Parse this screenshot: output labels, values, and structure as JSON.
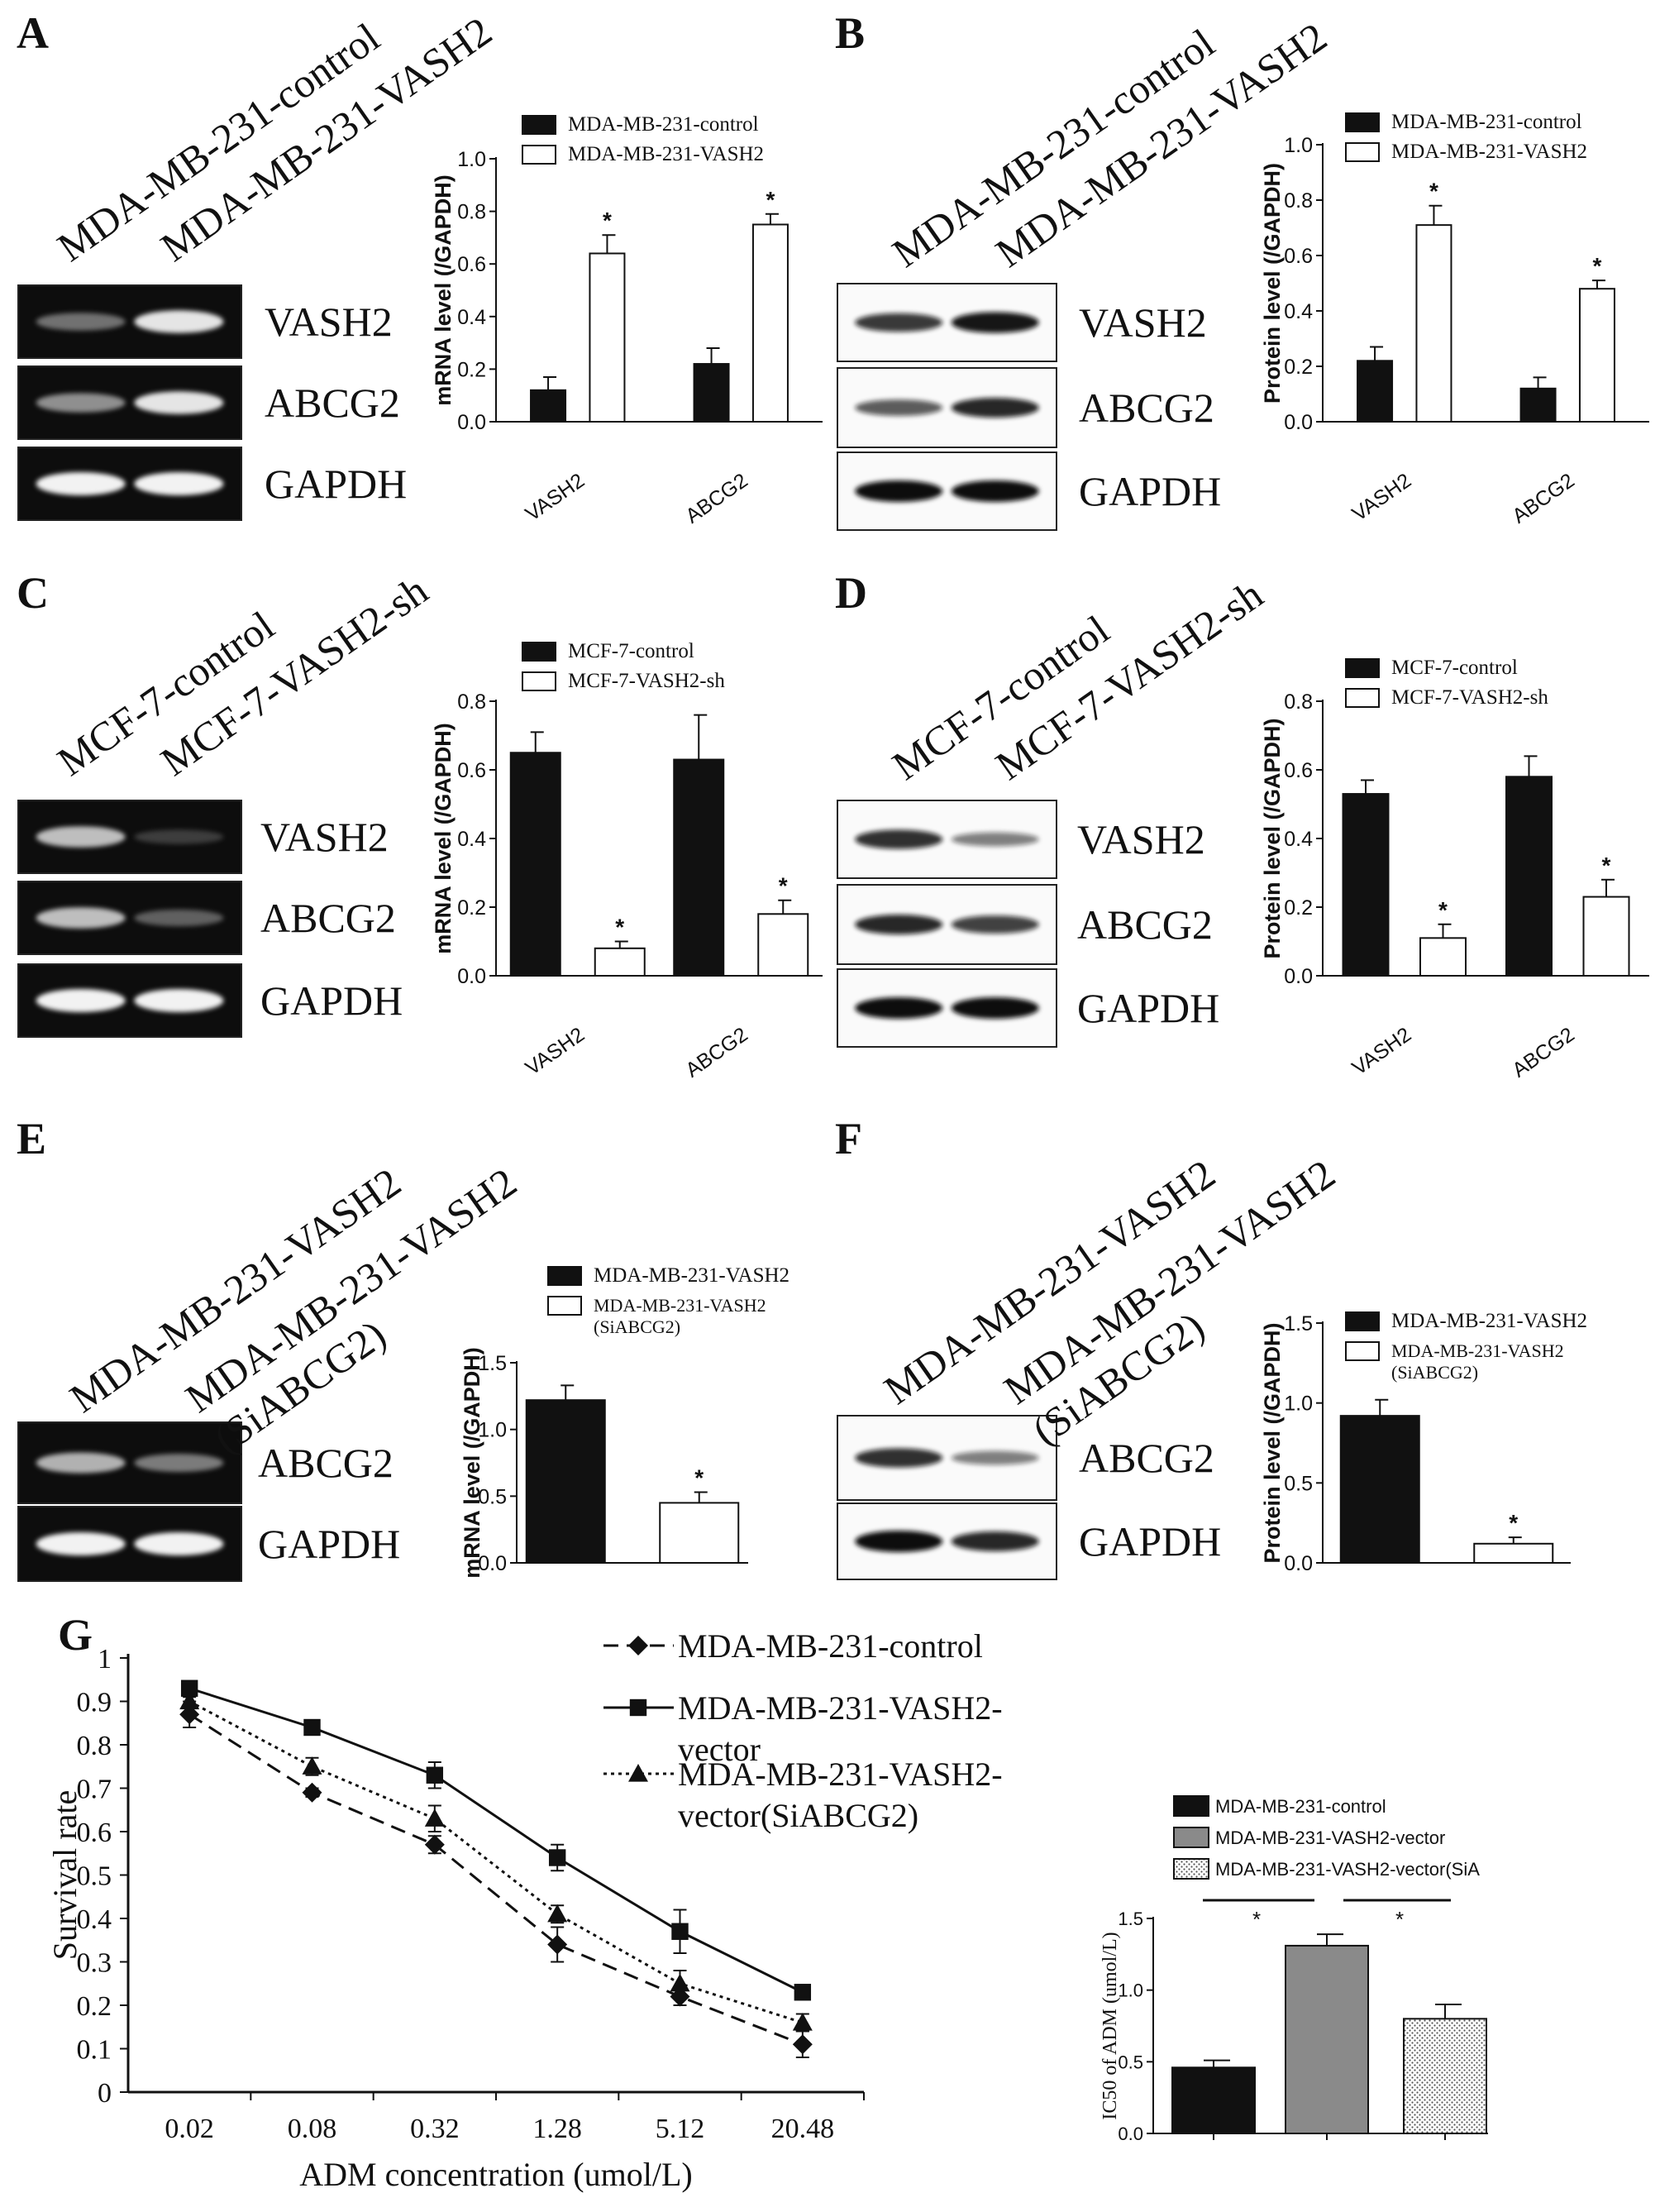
{
  "panel_letters": [
    "A",
    "B",
    "C",
    "D",
    "E",
    "F",
    "G"
  ],
  "gels": [
    {
      "panel": "A",
      "kind": "pcr",
      "lanes": [
        "MDA-MB-231-control",
        "MDA-MB-231-VASH2"
      ],
      "rows": [
        "VASH2",
        "ABCG2",
        "GAPDH"
      ]
    },
    {
      "panel": "B",
      "kind": "western",
      "lanes": [
        "MDA-MB-231-control",
        "MDA-MB-231-VASH2"
      ],
      "rows": [
        "VASH2",
        "ABCG2",
        "GAPDH"
      ]
    },
    {
      "panel": "C",
      "kind": "pcr",
      "lanes": [
        "MCF-7-control",
        "MCF-7-VASH2-sh"
      ],
      "rows": [
        "VASH2",
        "ABCG2",
        "GAPDH"
      ]
    },
    {
      "panel": "D",
      "kind": "western",
      "lanes": [
        "MCF-7-control",
        "MCF-7-VASH2-sh"
      ],
      "rows": [
        "VASH2",
        "ABCG2",
        "GAPDH"
      ]
    },
    {
      "panel": "E",
      "kind": "pcr",
      "lanes": [
        "MDA-MB-231-VASH2",
        "MDA-MB-231-VASH2\n(SiABCG2)"
      ],
      "rows": [
        "ABCG2",
        "GAPDH"
      ]
    },
    {
      "panel": "F",
      "kind": "western",
      "lanes": [
        "MDA-MB-231-VASH2",
        "MDA-MB-231-VASH2\n(SiABCG2)"
      ],
      "rows": [
        "ABCG2",
        "GAPDH"
      ]
    }
  ],
  "chart_data": [
    {
      "panel": "A",
      "type": "bar",
      "ylabel": "mRNA level (/GAPDH)",
      "ylim": [
        0,
        1.0
      ],
      "yticks": [
        "0.0",
        "0.2",
        "0.4",
        "0.6",
        "0.8",
        "1.0"
      ],
      "categories": [
        "VASH2",
        "ABCG2"
      ],
      "series": [
        {
          "name": "MDA-MB-231-control",
          "fill": "#111111",
          "values": [
            0.12,
            0.22
          ],
          "err": [
            0.05,
            0.06
          ]
        },
        {
          "name": "MDA-MB-231-VASH2",
          "fill": "#ffffff",
          "values": [
            0.64,
            0.75
          ],
          "err": [
            0.07,
            0.04
          ]
        }
      ],
      "sig": [
        "*",
        "*"
      ],
      "legend": "top-left"
    },
    {
      "panel": "B",
      "type": "bar",
      "ylabel": "Protein level (/GAPDH)",
      "ylim": [
        0,
        1.0
      ],
      "yticks": [
        "0.0",
        "0.2",
        "0.4",
        "0.6",
        "0.8",
        "1.0"
      ],
      "categories": [
        "VASH2",
        "ABCG2"
      ],
      "series": [
        {
          "name": "MDA-MB-231-control",
          "fill": "#111111",
          "values": [
            0.22,
            0.12
          ],
          "err": [
            0.05,
            0.04
          ]
        },
        {
          "name": "MDA-MB-231-VASH2",
          "fill": "#ffffff",
          "values": [
            0.71,
            0.48
          ],
          "err": [
            0.07,
            0.03
          ]
        }
      ],
      "sig": [
        "*",
        "*"
      ],
      "legend": "top-left"
    },
    {
      "panel": "C",
      "type": "bar",
      "ylabel": "mRNA level (/GAPDH)",
      "ylim": [
        0,
        0.8
      ],
      "yticks": [
        "0.0",
        "0.2",
        "0.4",
        "0.6",
        "0.8"
      ],
      "categories": [
        "VASH2",
        "ABCG2"
      ],
      "series": [
        {
          "name": "MCF-7-control",
          "fill": "#111111",
          "values": [
            0.65,
            0.63
          ],
          "err": [
            0.06,
            0.13
          ]
        },
        {
          "name": "MCF-7-VASH2-sh",
          "fill": "#ffffff",
          "values": [
            0.08,
            0.18
          ],
          "err": [
            0.02,
            0.04
          ]
        }
      ],
      "sig": [
        "*",
        "*"
      ],
      "legend": "top-left"
    },
    {
      "panel": "D",
      "type": "bar",
      "ylabel": "Protein level (/GAPDH)",
      "ylim": [
        0,
        0.8
      ],
      "yticks": [
        "0.0",
        "0.2",
        "0.4",
        "0.6",
        "0.8"
      ],
      "categories": [
        "VASH2",
        "ABCG2"
      ],
      "series": [
        {
          "name": "MCF-7-control",
          "fill": "#111111",
          "values": [
            0.53,
            0.58
          ],
          "err": [
            0.04,
            0.06
          ]
        },
        {
          "name": "MCF-7-VASH2-sh",
          "fill": "#ffffff",
          "values": [
            0.11,
            0.23
          ],
          "err": [
            0.04,
            0.05
          ]
        }
      ],
      "sig": [
        "*",
        "*"
      ],
      "legend": "top-left"
    },
    {
      "panel": "E",
      "type": "bar",
      "ylabel": "mRNA level (/GAPDH)",
      "ylim": [
        0,
        1.5
      ],
      "yticks": [
        "0.0",
        "0.5",
        "1.0",
        "1.5"
      ],
      "categories": [
        ""
      ],
      "series": [
        {
          "name": "MDA-MB-231-VASH2",
          "fill": "#111111",
          "values": [
            1.22
          ],
          "err": [
            0.11
          ]
        },
        {
          "name": "MDA-MB-231-VASH2\n(SiABCG2)",
          "fill": "#ffffff",
          "values": [
            0.45
          ],
          "err": [
            0.08
          ]
        }
      ],
      "sig": [
        "*"
      ],
      "legend": "top-left"
    },
    {
      "panel": "F",
      "type": "bar",
      "ylabel": "Protein level (/GAPDH)",
      "ylim": [
        0,
        1.5
      ],
      "yticks": [
        "0.0",
        "0.5",
        "1.0",
        "1.5"
      ],
      "categories": [
        ""
      ],
      "series": [
        {
          "name": "MDA-MB-231-VASH2",
          "fill": "#111111",
          "values": [
            0.92
          ],
          "err": [
            0.1
          ]
        },
        {
          "name": "MDA-MB-231-VASH2\n(SiABCG2)",
          "fill": "#ffffff",
          "values": [
            0.12
          ],
          "err": [
            0.04
          ]
        }
      ],
      "sig": [
        "*"
      ],
      "legend": "top-left"
    },
    {
      "panel": "G",
      "type": "line",
      "xlabel": "ADM concentration  (umol/L)",
      "ylabel": "Survival rate",
      "ylim": [
        0,
        1
      ],
      "yticks": [
        "0",
        "0.1",
        "0.2",
        "0.3",
        "0.4",
        "0.5",
        "0.6",
        "0.7",
        "0.8",
        "0.9",
        "1"
      ],
      "x": [
        "0.02",
        "0.08",
        "0.32",
        "1.28",
        "5.12",
        "20.48"
      ],
      "series": [
        {
          "name": "MDA-MB-231-control",
          "marker": "diamond",
          "dash": "dashed",
          "values": [
            0.87,
            0.69,
            0.57,
            0.34,
            0.22,
            0.11
          ],
          "err": [
            0.03,
            0.01,
            0.02,
            0.04,
            0.02,
            0.03
          ]
        },
        {
          "name": "MDA-MB-231-VASH2-\nvector",
          "marker": "square",
          "dash": "solid",
          "values": [
            0.93,
            0.84,
            0.73,
            0.54,
            0.37,
            0.23
          ],
          "err": [
            0.01,
            0.01,
            0.03,
            0.03,
            0.05,
            0.01
          ]
        },
        {
          "name": "MDA-MB-231-VASH2-\nvector(SiABCG2)",
          "marker": "triangle",
          "dash": "dotted",
          "values": [
            0.9,
            0.75,
            0.63,
            0.41,
            0.25,
            0.16
          ],
          "err": [
            0.01,
            0.02,
            0.03,
            0.02,
            0.03,
            0.02
          ]
        }
      ],
      "legend": "top-right"
    },
    {
      "panel": "G",
      "type": "bar",
      "ylabel": "IC50 of ADM (umol/L)",
      "ylim": [
        0,
        1.5
      ],
      "yticks": [
        "0.0",
        "0.5",
        "1.0",
        "1.5"
      ],
      "categories": [
        "MDA-MB-231-control",
        "MDA-MB-231-VASH2-vector",
        "MDA-MB-231-VASH2-vector(SiA"
      ],
      "values": [
        0.46,
        1.31,
        0.8
      ],
      "err": [
        0.05,
        0.08,
        0.1
      ],
      "fills": [
        "#111111",
        "#8a8a8a",
        "dotted"
      ],
      "sig": [
        "*",
        "*"
      ],
      "legend": "top"
    }
  ]
}
